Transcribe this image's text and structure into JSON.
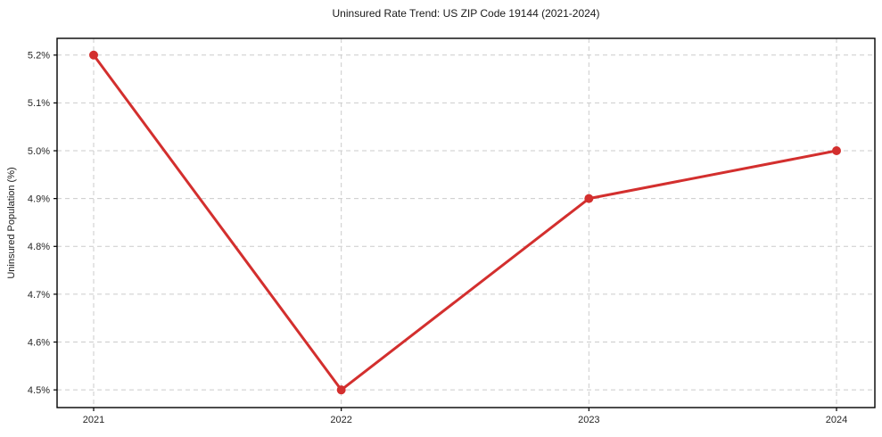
{
  "figure": {
    "title": "Uninsured Rate Trend: US ZIP Code 19144 (2021-2024)",
    "ylabel": "Uninsured Population (%)"
  },
  "chart_data": {
    "type": "line",
    "title": "Uninsured Rate Trend: US ZIP Code 19144 (2021-2024)",
    "xlabel": "",
    "ylabel": "Uninsured Population (%)",
    "categories": [
      "2021",
      "2022",
      "2023",
      "2024"
    ],
    "series": [
      {
        "name": "uninsured-rate",
        "values": [
          5.2,
          4.5,
          4.9,
          5.0
        ],
        "color": "#d32f2e",
        "marker": "circle",
        "marker_radius": 5,
        "line_width": 3
      }
    ],
    "yticks": [
      4.5,
      4.6,
      4.7,
      4.8,
      4.9,
      5.0,
      5.1,
      5.2
    ],
    "ytick_labels": [
      "4.5%",
      "4.6%",
      "4.7%",
      "4.8%",
      "4.9%",
      "5.0%",
      "5.1%",
      "5.2%"
    ],
    "ylim": [
      4.463,
      5.235
    ],
    "grid": "dashed",
    "grid_color": "#cbcbcb",
    "axis_border_color": "#000000",
    "legend": false
  }
}
